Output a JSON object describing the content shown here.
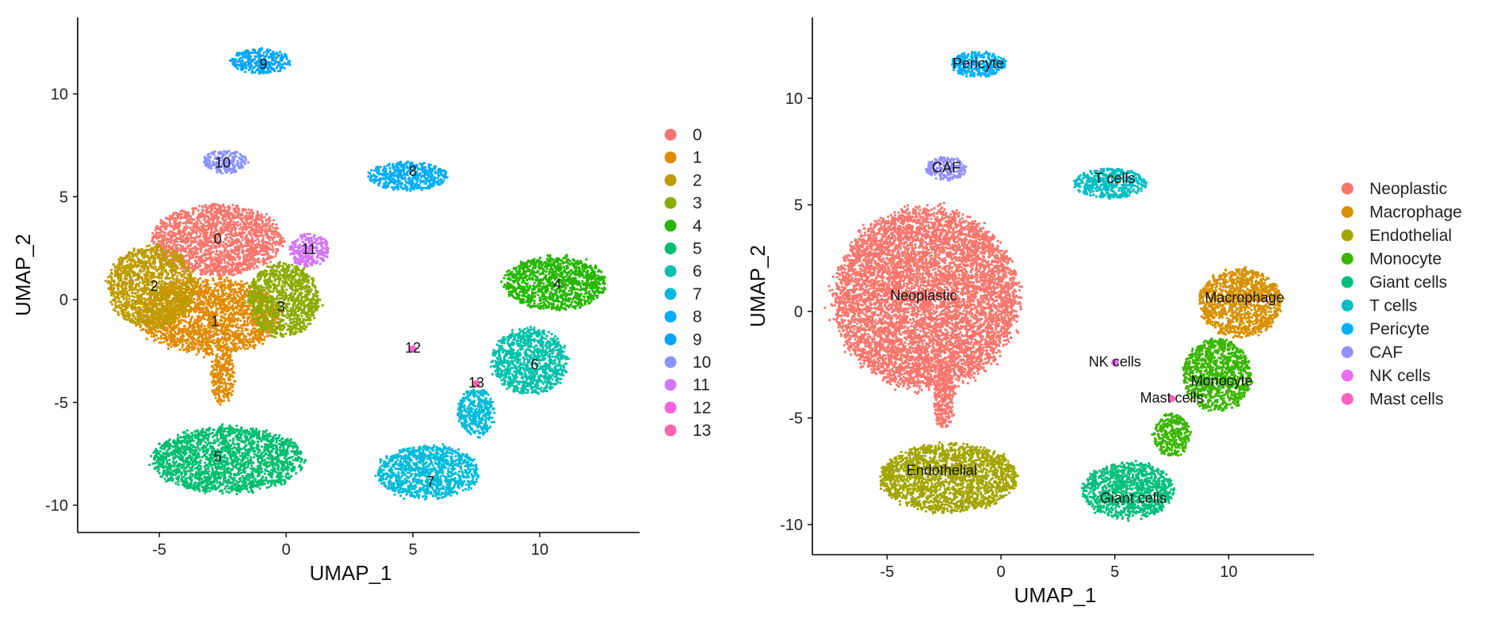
{
  "chart_data": [
    {
      "type": "scatter",
      "title": "",
      "xlabel": "UMAP_1",
      "ylabel": "UMAP_2",
      "xlim": [
        -8.2,
        14
      ],
      "ylim": [
        -11.2,
        13.5
      ],
      "xticks": [
        -5,
        0,
        5,
        10
      ],
      "yticks": [
        -10,
        -5,
        0,
        5,
        10
      ],
      "grid": false,
      "legend_position": "right",
      "series": [
        {
          "name": "0",
          "color": "#F8766D",
          "label_pos": [
            -2.7,
            2.9
          ],
          "blobs": [
            [
              -2.7,
              2.9,
              2.6,
              1.7,
              0.3
            ]
          ]
        },
        {
          "name": "1",
          "color": "#E18A00",
          "label_pos": [
            -2.8,
            -1.1
          ],
          "blobs": [
            [
              -3.0,
              -0.8,
              2.8,
              1.8,
              0.7
            ],
            [
              -2.5,
              -3.8,
              0.45,
              1.3,
              0.3
            ]
          ]
        },
        {
          "name": "2",
          "color": "#BE9C00",
          "label_pos": [
            -5.2,
            0.6
          ],
          "blobs": [
            [
              -5.3,
              0.6,
              1.7,
              2.0,
              0.4
            ]
          ]
        },
        {
          "name": "3",
          "color": "#8CAB00",
          "label_pos": [
            -0.2,
            -0.4
          ],
          "blobs": [
            [
              -0.1,
              0.0,
              1.4,
              1.8,
              0.4
            ]
          ]
        },
        {
          "name": "4",
          "color": "#24B700",
          "label_pos": [
            10.7,
            0.7
          ],
          "blobs": [
            [
              10.6,
              0.8,
              2.0,
              1.3,
              0.3
            ]
          ]
        },
        {
          "name": "5",
          "color": "#00BE70",
          "label_pos": [
            -2.7,
            -7.7
          ],
          "blobs": [
            [
              -2.3,
              -7.8,
              3.0,
              1.6,
              0.4
            ]
          ]
        },
        {
          "name": "6",
          "color": "#00C1AB",
          "label_pos": [
            9.8,
            -3.2
          ],
          "blobs": [
            [
              9.6,
              -3.0,
              1.5,
              1.6,
              0.3
            ]
          ]
        },
        {
          "name": "7",
          "color": "#00BBDA",
          "label_pos": [
            5.7,
            -8.9
          ],
          "blobs": [
            [
              5.6,
              -8.4,
              2.0,
              1.3,
              0.4
            ],
            [
              7.5,
              -5.5,
              0.7,
              1.2,
              0.2
            ]
          ]
        },
        {
          "name": "8",
          "color": "#00ACFC",
          "label_pos": [
            5.0,
            6.2
          ],
          "blobs": [
            [
              4.8,
              6.0,
              1.6,
              0.7,
              0.1
            ]
          ]
        },
        {
          "name": "9",
          "color": "#00A5FF",
          "label_pos": [
            -0.9,
            11.4
          ],
          "blobs": [
            [
              -1.0,
              11.6,
              1.2,
              0.6,
              0.1
            ]
          ]
        },
        {
          "name": "10",
          "color": "#8B93FF",
          "label_pos": [
            -2.5,
            6.6
          ],
          "blobs": [
            [
              -2.4,
              6.7,
              0.9,
              0.55,
              0.1
            ]
          ]
        },
        {
          "name": "11",
          "color": "#D575FE",
          "label_pos": [
            0.9,
            2.4
          ],
          "blobs": [
            [
              0.9,
              2.4,
              0.8,
              0.8,
              0.1
            ]
          ]
        },
        {
          "name": "12",
          "color": "#F962DD",
          "label_pos": [
            5.0,
            -2.4
          ],
          "blobs": [
            [
              5.0,
              -2.4,
              0.12,
              0.12,
              0.0
            ]
          ]
        },
        {
          "name": "13",
          "color": "#FF65AC",
          "label_pos": [
            7.5,
            -4.1
          ],
          "blobs": [
            [
              7.5,
              -4.1,
              0.12,
              0.12,
              0.0
            ]
          ]
        }
      ]
    },
    {
      "type": "scatter",
      "title": "",
      "xlabel": "UMAP_1",
      "ylabel": "UMAP_2",
      "xlim": [
        -8.2,
        14
      ],
      "ylim": [
        -11.2,
        13.5
      ],
      "xticks": [
        -5,
        0,
        5,
        10
      ],
      "yticks": [
        -10,
        -5,
        0,
        5,
        10
      ],
      "grid": false,
      "legend_position": "right",
      "series": [
        {
          "name": "Neoplastic",
          "color": "#F8766D",
          "label_pos": [
            -3.4,
            0.7
          ],
          "blobs": [
            [
              -3.3,
              0.6,
              4.0,
              4.2,
              1.0
            ],
            [
              -2.5,
              -4.0,
              0.45,
              1.5,
              0.3
            ]
          ]
        },
        {
          "name": "Macrophage",
          "color": "#D89000",
          "label_pos": [
            10.7,
            0.6
          ],
          "blobs": [
            [
              10.5,
              0.4,
              1.8,
              1.6,
              0.3
            ]
          ]
        },
        {
          "name": "Endothelial",
          "color": "#A3A500",
          "label_pos": [
            -2.6,
            -7.5
          ],
          "blobs": [
            [
              -2.3,
              -7.8,
              3.0,
              1.6,
              0.4
            ]
          ]
        },
        {
          "name": "Monocyte",
          "color": "#39B600",
          "label_pos": [
            9.7,
            -3.3
          ],
          "blobs": [
            [
              9.5,
              -3.0,
              1.5,
              1.7,
              0.3
            ],
            [
              7.5,
              -5.8,
              0.8,
              1.0,
              0.2
            ]
          ]
        },
        {
          "name": "Giant cells",
          "color": "#00BF7D",
          "label_pos": [
            5.8,
            -8.8
          ],
          "blobs": [
            [
              5.6,
              -8.4,
              2.0,
              1.3,
              0.4
            ]
          ]
        },
        {
          "name": "T cells",
          "color": "#00BFC4",
          "label_pos": [
            5.0,
            6.2
          ],
          "blobs": [
            [
              4.8,
              6.0,
              1.6,
              0.7,
              0.1
            ]
          ]
        },
        {
          "name": "Pericyte",
          "color": "#00B0F6",
          "label_pos": [
            -1.0,
            11.6
          ],
          "blobs": [
            [
              -1.0,
              11.6,
              1.2,
              0.6,
              0.1
            ]
          ]
        },
        {
          "name": "CAF",
          "color": "#9590FF",
          "label_pos": [
            -2.4,
            6.7
          ],
          "blobs": [
            [
              -2.4,
              6.7,
              0.9,
              0.55,
              0.1
            ]
          ]
        },
        {
          "name": "NK cells",
          "color": "#E76BF3",
          "label_pos": [
            5.0,
            -2.4
          ],
          "blobs": [
            [
              5.0,
              -2.4,
              0.12,
              0.12,
              0.0
            ]
          ]
        },
        {
          "name": "Mast cells",
          "color": "#FF62BC",
          "label_pos": [
            7.5,
            -4.1
          ],
          "blobs": [
            [
              7.5,
              -4.1,
              0.12,
              0.12,
              0.0
            ]
          ]
        }
      ]
    }
  ]
}
